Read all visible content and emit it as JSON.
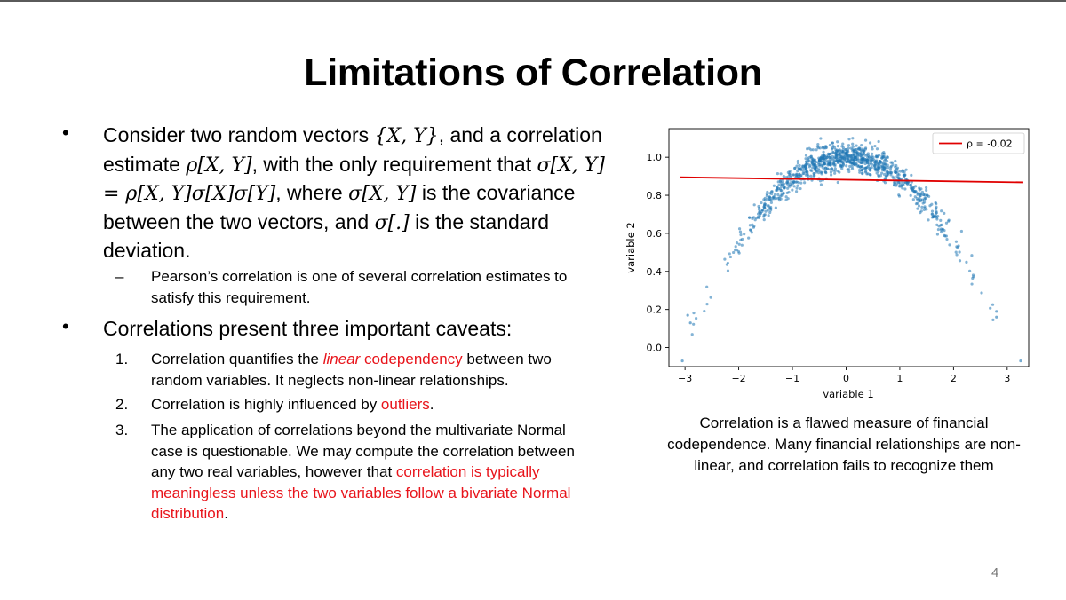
{
  "slide": {
    "title": "Limitations of Correlation",
    "page_number": "4",
    "bullet1": {
      "t1": "Consider two random vectors ",
      "m1": "{X, Y}",
      "t2": ", and a correlation estimate ",
      "m2": "ρ[X, Y]",
      "t3": ", with the only requirement that ",
      "m3": "σ[X, Y] = ρ[X, Y]σ[X]σ[Y]",
      "t4": ", where ",
      "m4": "σ[X, Y]",
      "t5": " is the covariance between the two vectors, and ",
      "m5": "σ[.]",
      "t6": " is the standard deviation."
    },
    "sub1": {
      "dash": "–",
      "text": "Pearson’s correlation is one of several correlation estimates to satisfy this requirement."
    },
    "bullet2": {
      "text": "Correlations present three important caveats:"
    },
    "caveats": [
      {
        "num": "1.",
        "a": "Correlation quantifies the ",
        "b": "linear",
        "c": " codependency",
        "d": " between two random variables. It neglects non-linear relationships."
      },
      {
        "num": "2.",
        "a": "Correlation is highly influenced by ",
        "b": "outliers",
        "c": "."
      },
      {
        "num": "3.",
        "a": "The application of correlations beyond the multivariate Normal case is questionable. We may compute the correlation between any two real variables, however that ",
        "b": "correlation is typically meaningless unless the two variables follow a bivariate Normal distribution",
        "c": "."
      }
    ],
    "caption": "Correlation is a flawed measure of financial codependence. Many financial relationships are non-linear, and correlation fails to recognize them"
  },
  "colors": {
    "accent_red": "#e8141b",
    "point_blue": "#1f77b4",
    "fit_line": "#e00000"
  },
  "chart_data": {
    "type": "scatter",
    "title": "",
    "xlabel": "variable 1",
    "ylabel": "variable 2",
    "xlim": [
      -3.3,
      3.4
    ],
    "ylim": [
      -0.1,
      1.15
    ],
    "x_ticks": [
      -3,
      -2,
      -1,
      0,
      1,
      2,
      3
    ],
    "x_tick_labels": [
      "−3",
      "−2",
      "−1",
      "0",
      "1",
      "2",
      "3"
    ],
    "y_ticks": [
      0.0,
      0.2,
      0.4,
      0.6,
      0.8,
      1.0
    ],
    "y_tick_labels": [
      "0.0",
      "0.2",
      "0.4",
      "0.6",
      "0.8",
      "1.0"
    ],
    "legend": {
      "label": "ρ = -0.02",
      "position": "top-right"
    },
    "fit_line": {
      "x": [
        -3.1,
        3.3
      ],
      "y": [
        0.895,
        0.868
      ]
    },
    "scatter": {
      "description": "y ≈ 1 − x²/9 with noise sd 0.04, ~1000 points, x ~ Normal(0, 1)",
      "n": 1000,
      "x_mean": 0,
      "x_sd": 1.0,
      "noise_sd": 0.04,
      "curve": "1 - x^2/9",
      "seed": 7
    },
    "outliers": [
      {
        "x": -3.05,
        "y": -0.07
      },
      {
        "x": 3.25,
        "y": -0.07
      },
      {
        "x": -2.95,
        "y": 0.17
      },
      {
        "x": -2.9,
        "y": 0.13
      },
      {
        "x": 2.8,
        "y": 0.16
      },
      {
        "x": 2.8,
        "y": 0.19
      }
    ]
  }
}
